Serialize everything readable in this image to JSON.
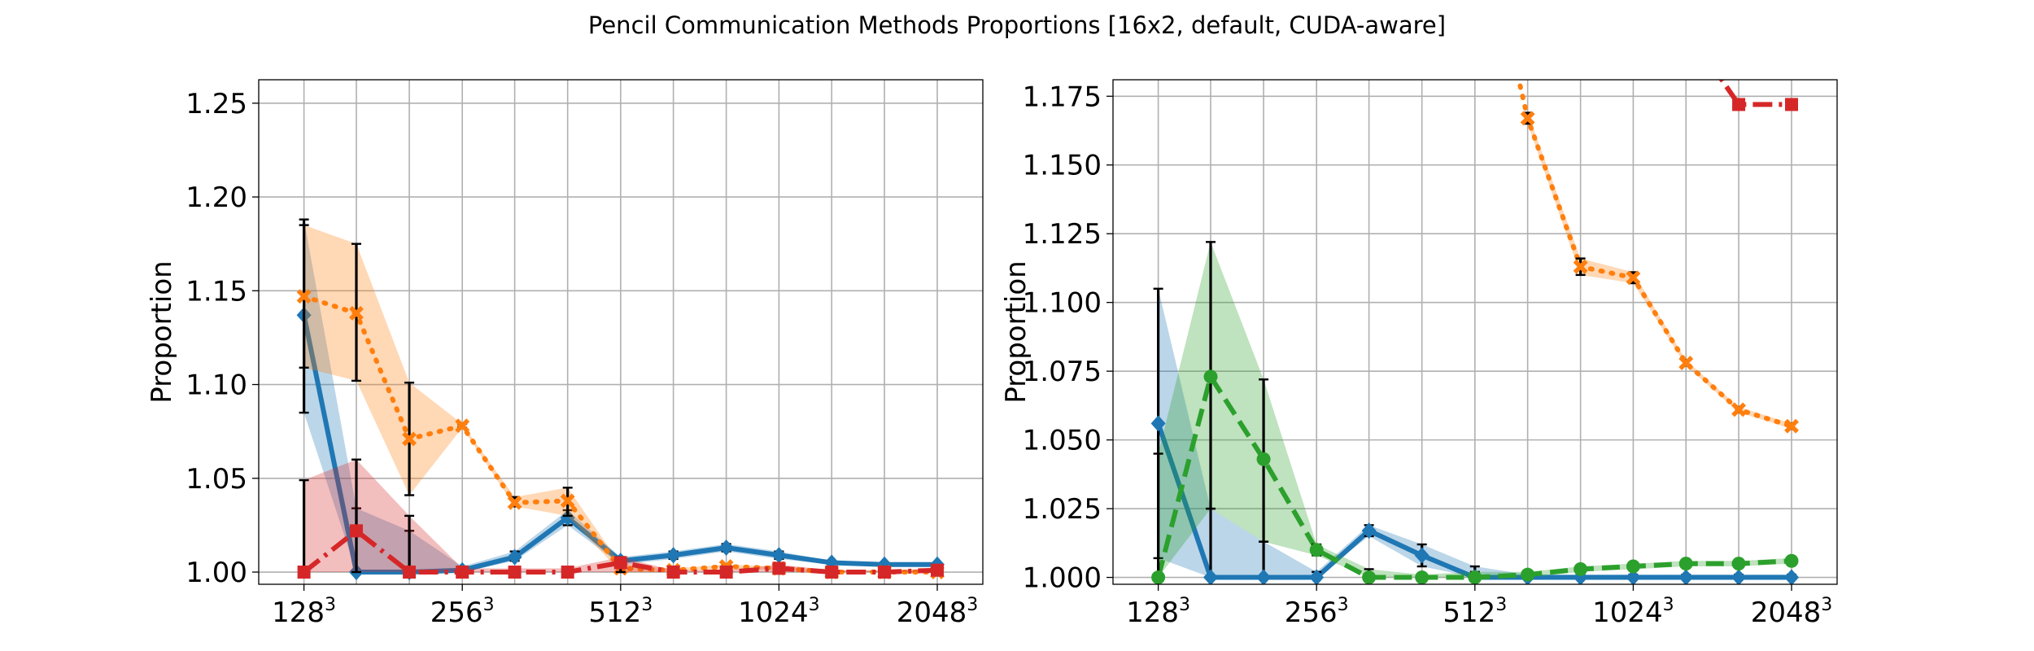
{
  "title": "Pencil Communication Methods Proportions [16x2, default, CUDA-aware]",
  "chart_data": [
    {
      "type": "line",
      "ylabel": "Proportion",
      "xlabel": "",
      "x": [
        128,
        161,
        203,
        256,
        322,
        406,
        512,
        645,
        813,
        1024,
        1290,
        1625,
        2048
      ],
      "xlim": [
        105,
        2500
      ],
      "xscale": "log2",
      "xticks": [
        {
          "value": 128,
          "base": "128",
          "exp": "3"
        },
        {
          "value": 256,
          "base": "256",
          "exp": "3"
        },
        {
          "value": 512,
          "base": "512",
          "exp": "3"
        },
        {
          "value": 1024,
          "base": "1024",
          "exp": "3"
        },
        {
          "value": 2048,
          "base": "2048",
          "exp": "3"
        }
      ],
      "ylim": [
        0.9935,
        1.2625
      ],
      "yticks": [
        1.0,
        1.05,
        1.1,
        1.15,
        1.2,
        1.25
      ],
      "ytick_labels": [
        "1.00",
        "1.05",
        "1.10",
        "1.15",
        "1.20",
        "1.25"
      ],
      "grid": true,
      "series": [
        {
          "name": "blue",
          "color": "#1f77b4",
          "style": "solid",
          "marker": "diamond",
          "values": [
            1.137,
            1.0,
            1.0,
            1.001,
            1.008,
            1.029,
            1.006,
            1.009,
            1.013,
            1.009,
            1.005,
            1.004,
            1.004
          ],
          "lower": [
            1.085,
            1.0,
            1.0,
            1.0,
            1.006,
            1.025,
            1.004,
            1.007,
            1.011,
            1.007,
            1.004,
            1.003,
            1.003
          ],
          "upper": [
            1.188,
            1.034,
            1.022,
            1.003,
            1.011,
            1.033,
            1.008,
            1.011,
            1.015,
            1.011,
            1.006,
            1.005,
            1.005
          ]
        },
        {
          "name": "orange",
          "color": "#ff7f0e",
          "style": "dotted",
          "marker": "x",
          "values": [
            1.147,
            1.138,
            1.071,
            1.078,
            1.037,
            1.038,
            1.002,
            1.001,
            1.003,
            1.002,
            1.0,
            1.0,
            1.0
          ],
          "lower": [
            1.109,
            1.102,
            1.041,
            1.077,
            1.035,
            1.03,
            1.0,
            1.0,
            1.002,
            1.001,
            1.0,
            1.0,
            1.0
          ],
          "upper": [
            1.185,
            1.175,
            1.101,
            1.079,
            1.04,
            1.045,
            1.004,
            1.002,
            1.004,
            1.003,
            1.001,
            1.001,
            1.001
          ]
        },
        {
          "name": "red",
          "color": "#d62728",
          "style": "dashdot",
          "marker": "square",
          "values": [
            1.0,
            1.022,
            1.0,
            1.0,
            1.0,
            1.0,
            1.005,
            1.0,
            1.0,
            1.002,
            1.0,
            1.0,
            1.001
          ],
          "lower": [
            1.0,
            1.0,
            1.0,
            1.0,
            1.0,
            1.0,
            1.0,
            1.0,
            1.0,
            1.0,
            1.0,
            1.0,
            1.0
          ],
          "upper": [
            1.049,
            1.06,
            1.03,
            1.002,
            1.002,
            1.002,
            1.008,
            1.001,
            1.001,
            1.004,
            1.001,
            1.001,
            1.002
          ]
        }
      ]
    },
    {
      "type": "line",
      "ylabel": "Proportion",
      "xlabel": "",
      "x": [
        128,
        161,
        203,
        256,
        322,
        406,
        512,
        645,
        813,
        1024,
        1290,
        1625,
        2048
      ],
      "xlim": [
        105,
        2500
      ],
      "xscale": "log2",
      "xticks": [
        {
          "value": 128,
          "base": "128",
          "exp": "3"
        },
        {
          "value": 256,
          "base": "256",
          "exp": "3"
        },
        {
          "value": 512,
          "base": "512",
          "exp": "3"
        },
        {
          "value": 1024,
          "base": "1024",
          "exp": "3"
        },
        {
          "value": 2048,
          "base": "2048",
          "exp": "3"
        }
      ],
      "ylim": [
        0.9975,
        1.181
      ],
      "yticks": [
        1.0,
        1.025,
        1.05,
        1.075,
        1.1,
        1.125,
        1.15,
        1.175
      ],
      "ytick_labels": [
        "1.000",
        "1.025",
        "1.050",
        "1.075",
        "1.100",
        "1.125",
        "1.150",
        "1.175"
      ],
      "grid": true,
      "series": [
        {
          "name": "blue",
          "color": "#1f77b4",
          "style": "solid",
          "marker": "diamond",
          "values": [
            1.056,
            1.0,
            1.0,
            1.0,
            1.017,
            1.008,
            1.0,
            1.0,
            1.0,
            1.0,
            1.0,
            1.0,
            1.0
          ],
          "lower": [
            1.007,
            1.0,
            1.0,
            1.0,
            1.015,
            1.004,
            1.0,
            1.0,
            1.0,
            1.0,
            1.0,
            1.0,
            1.0
          ],
          "upper": [
            1.105,
            1.025,
            1.013,
            1.002,
            1.019,
            1.012,
            1.004,
            1.001,
            1.001,
            1.001,
            1.001,
            1.001,
            1.001
          ]
        },
        {
          "name": "green",
          "color": "#2ca02c",
          "style": "dashed",
          "marker": "circle",
          "values": [
            1.0,
            1.073,
            1.043,
            1.01,
            1.0,
            1.0,
            1.0,
            1.001,
            1.003,
            1.004,
            1.005,
            1.005,
            1.006
          ],
          "lower": [
            1.0,
            1.025,
            1.013,
            1.008,
            1.0,
            1.0,
            1.0,
            1.0,
            1.002,
            1.003,
            1.004,
            1.004,
            1.005
          ],
          "upper": [
            1.045,
            1.122,
            1.072,
            1.012,
            1.003,
            1.001,
            1.002,
            1.002,
            1.004,
            1.005,
            1.006,
            1.006,
            1.007
          ]
        },
        {
          "name": "orange",
          "color": "#ff7f0e",
          "style": "dotted",
          "marker": "x",
          "values": [
            null,
            null,
            null,
            null,
            null,
            null,
            1.25,
            1.167,
            1.113,
            1.109,
            1.078,
            1.061,
            1.055
          ],
          "lower": [
            null,
            null,
            null,
            null,
            null,
            null,
            null,
            1.165,
            1.11,
            1.107,
            1.077,
            1.06,
            1.054
          ],
          "upper": [
            null,
            null,
            null,
            null,
            null,
            null,
            null,
            1.169,
            1.116,
            1.111,
            1.079,
            1.062,
            1.056
          ]
        },
        {
          "name": "red",
          "color": "#d62728",
          "style": "dashdot",
          "marker": "square",
          "values": [
            null,
            null,
            null,
            null,
            null,
            null,
            null,
            null,
            null,
            null,
            1.2,
            1.172,
            1.172
          ],
          "lower": null,
          "upper": null
        }
      ]
    }
  ]
}
